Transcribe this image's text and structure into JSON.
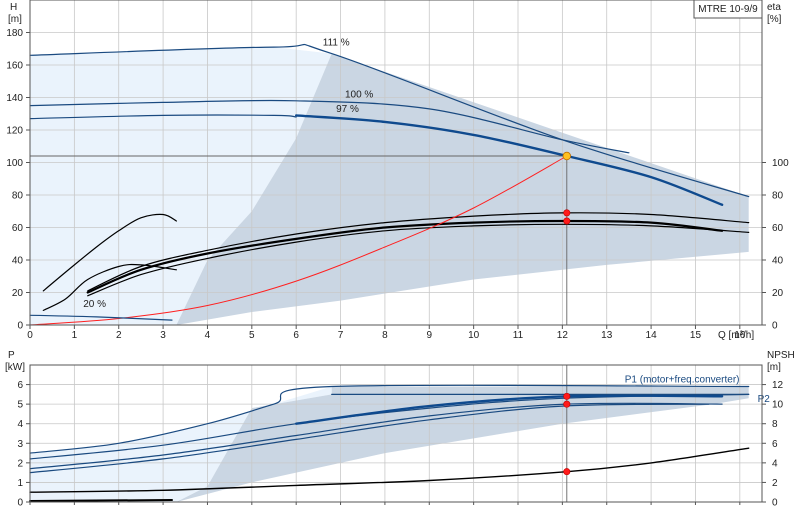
{
  "model_box": "MTRE 10-9/9",
  "chart_data": [
    {
      "type": "line",
      "panel": "head_efficiency",
      "left_axis_label": "H",
      "left_axis_unit": "[m]",
      "right_axis_label": "eta",
      "right_axis_unit": "[%]",
      "xlabel": "Q [m³/h]",
      "xlim": [
        0,
        16.5
      ],
      "ylim": [
        0,
        200
      ],
      "y2lim": [
        0,
        200
      ],
      "x_ticks": [
        "0",
        "1",
        "2",
        "3",
        "4",
        "5",
        "6",
        "7",
        "8",
        "9",
        "10",
        "11",
        "12",
        "13",
        "14",
        "15",
        "16"
      ],
      "y_ticks": [
        "0",
        "20",
        "40",
        "60",
        "80",
        "100",
        "120",
        "140",
        "160",
        "180"
      ],
      "y2_ticks": [
        "0",
        "20",
        "40",
        "60",
        "80",
        "100"
      ],
      "grid": true,
      "shaded_regions": [
        {
          "name": "light",
          "color": "#eaf3fc",
          "points": [
            [
              0,
              166
            ],
            [
              5.5,
              171
            ],
            [
              6.8,
              167
            ],
            [
              6.0,
              115
            ],
            [
              5.0,
              70
            ],
            [
              4.0,
              40
            ],
            [
              3.3,
              0
            ],
            [
              0,
              0
            ]
          ]
        },
        {
          "name": "dark",
          "color": "#cad6e3",
          "points": [
            [
              6.8,
              167
            ],
            [
              16.2,
              79
            ],
            [
              16.2,
              45
            ],
            [
              13,
              37
            ],
            [
              10,
              28
            ],
            [
              7,
              15
            ],
            [
              5,
              8
            ],
            [
              3.3,
              0
            ],
            [
              4.0,
              40
            ],
            [
              5.0,
              70
            ],
            [
              6.0,
              115
            ]
          ]
        }
      ],
      "series": [
        {
          "name": "111 %",
          "kind": "head",
          "color": "#1a4a80",
          "width": 1.2,
          "points": [
            [
              0,
              166
            ],
            [
              5.5,
              171
            ],
            [
              6.8,
              167
            ],
            [
              12,
              114
            ],
            [
              16.2,
              79
            ]
          ]
        },
        {
          "name": "100 %",
          "kind": "head",
          "color": "#1a4a80",
          "width": 1.2,
          "points": [
            [
              0,
              135
            ],
            [
              3,
              137
            ],
            [
              6,
              138
            ],
            [
              9,
              133
            ],
            [
              12,
              114
            ],
            [
              13.5,
              106
            ]
          ]
        },
        {
          "name": "97 %",
          "kind": "head",
          "color": "#1a4a80",
          "width": 1.2,
          "points": [
            [
              0,
              127
            ],
            [
              3,
              129
            ],
            [
              5.5,
              129
            ],
            [
              6,
              128
            ]
          ]
        },
        {
          "name": "",
          "kind": "head_duty",
          "color": "#0f4a8e",
          "width": 2.4,
          "points": [
            [
              6,
              129
            ],
            [
              8,
              125
            ],
            [
              10,
              117
            ],
            [
              12.1,
              104
            ],
            [
              14,
              91
            ],
            [
              15.6,
              74
            ]
          ]
        },
        {
          "name": "",
          "kind": "efficiency",
          "color": "#000000",
          "width": 1.2,
          "points": [
            [
              1.3,
              21
            ],
            [
              2.5,
              36
            ],
            [
              4,
              46
            ],
            [
              6,
              56
            ],
            [
              8,
              63
            ],
            [
              10,
              67
            ],
            [
              12,
              69
            ],
            [
              14,
              68
            ],
            [
              16.2,
              63
            ]
          ]
        },
        {
          "name": "",
          "kind": "efficiency",
          "color": "#000000",
          "width": 2.2,
          "points": [
            [
              1.3,
              20
            ],
            [
              2.5,
              34
            ],
            [
              4,
              44
            ],
            [
              6,
              53
            ],
            [
              8,
              60
            ],
            [
              10,
              63
            ],
            [
              12,
              64
            ],
            [
              14,
              63
            ],
            [
              15.6,
              58
            ]
          ]
        },
        {
          "name": "",
          "kind": "efficiency",
          "color": "#000000",
          "width": 1.2,
          "points": [
            [
              1.3,
              18
            ],
            [
              2.5,
              31
            ],
            [
              4,
              41
            ],
            [
              6,
              51
            ],
            [
              8,
              58
            ],
            [
              10,
              61
            ],
            [
              12,
              62
            ],
            [
              14,
              61
            ],
            [
              16.2,
              57
            ]
          ]
        },
        {
          "name": "",
          "kind": "efficiency",
          "color": "#000000",
          "width": 1.2,
          "points": [
            [
              0.3,
              21
            ],
            [
              1,
              37
            ],
            [
              1.5,
              48
            ],
            [
              2,
              58
            ],
            [
              2.5,
              66
            ],
            [
              3,
              68
            ],
            [
              3.3,
              64
            ]
          ]
        },
        {
          "name": "",
          "kind": "efficiency",
          "color": "#000000",
          "width": 1.2,
          "points": [
            [
              0.3,
              9
            ],
            [
              0.8,
              16
            ],
            [
              1.3,
              28
            ],
            [
              2,
              36
            ],
            [
              2.5,
              37
            ],
            [
              3.3,
              34
            ]
          ]
        },
        {
          "name": "",
          "kind": "system",
          "color": "#ff2020",
          "width": 1,
          "points": [
            [
              0,
              0
            ],
            [
              2,
              4
            ],
            [
              4,
              12
            ],
            [
              6,
              27
            ],
            [
              8,
              48
            ],
            [
              10,
              72
            ],
            [
              12.1,
              104
            ]
          ]
        },
        {
          "name": "20 %",
          "kind": "head",
          "color": "#1a4a80",
          "width": 1.2,
          "points": [
            [
              0,
              6
            ],
            [
              1.5,
              5
            ],
            [
              3.2,
              3
            ]
          ]
        }
      ],
      "operating_point": {
        "x": 12.1,
        "y": 104
      },
      "duty_markers": [
        {
          "x": 12.1,
          "y": 69
        },
        {
          "x": 12.1,
          "y": 64
        }
      ],
      "label_positions": [
        {
          "text": "111 %",
          "x": 6.6,
          "y": 172
        },
        {
          "text": "100 %",
          "x": 7.1,
          "y": 140
        },
        {
          "text": "97 %",
          "x": 6.9,
          "y": 131
        },
        {
          "text": "20 %",
          "x": 1.2,
          "y": 11
        }
      ]
    },
    {
      "type": "line",
      "panel": "power_npsh",
      "left_axis_label": "P",
      "left_axis_unit": "[kW]",
      "right_axis_label": "NPSH",
      "right_axis_unit": "[m]",
      "xlim": [
        0,
        16.5
      ],
      "ylim": [
        0,
        7
      ],
      "y2lim": [
        0,
        14
      ],
      "y_ticks": [
        "0",
        "1",
        "2",
        "3",
        "4",
        "5",
        "6"
      ],
      "y2_ticks": [
        "0",
        "2",
        "4",
        "6",
        "8",
        "10",
        "12"
      ],
      "grid": true,
      "shaded_regions": [
        {
          "name": "light",
          "color": "#eaf3fc",
          "points": [
            [
              0,
              2.5
            ],
            [
              2,
              3.0
            ],
            [
              4,
              4.0
            ],
            [
              5.5,
              5.0
            ],
            [
              6.8,
              5.9
            ],
            [
              6.8,
              5.5
            ],
            [
              5,
              4.8
            ],
            [
              4,
              0.8
            ],
            [
              3.3,
              0
            ],
            [
              0,
              0
            ]
          ]
        },
        {
          "name": "dark",
          "color": "#cad6e3",
          "points": [
            [
              6.8,
              5.9
            ],
            [
              16.2,
              5.9
            ],
            [
              16.2,
              5.3
            ],
            [
              15.4,
              5.0
            ],
            [
              12,
              4.0
            ],
            [
              8,
              2.5
            ],
            [
              5,
              1.0
            ],
            [
              3.3,
              0
            ],
            [
              4,
              0.8
            ],
            [
              5,
              4.8
            ],
            [
              6.8,
              5.5
            ]
          ]
        }
      ],
      "series": [
        {
          "name": "",
          "kind": "power",
          "color": "#1a4a80",
          "width": 1.2,
          "points": [
            [
              0,
              2.5
            ],
            [
              2,
              3.0
            ],
            [
              4,
              4.0
            ],
            [
              5.5,
              5.0
            ],
            [
              6.8,
              5.9
            ],
            [
              16.2,
              5.9
            ]
          ]
        },
        {
          "name": "",
          "kind": "power",
          "color": "#1a4a80",
          "width": 1.2,
          "points": [
            [
              0,
              2.2
            ],
            [
              3,
              2.9
            ],
            [
              6,
              4.0
            ],
            [
              9,
              4.8
            ],
            [
              12,
              5.3
            ],
            [
              16.2,
              5.5
            ]
          ]
        },
        {
          "name": "P1 (motor+freq.converter)",
          "kind": "power_duty",
          "color": "#0f4a8e",
          "width": 2.4,
          "points": [
            [
              6,
              4.0
            ],
            [
              9,
              4.9
            ],
            [
              12.1,
              5.4
            ],
            [
              15.6,
              5.4
            ]
          ]
        },
        {
          "name": "",
          "kind": "power",
          "color": "#1a4a80",
          "width": 1.2,
          "points": [
            [
              0,
              1.7
            ],
            [
              3,
              2.4
            ],
            [
              6,
              3.4
            ],
            [
              9,
              4.4
            ],
            [
              12.1,
              5.0
            ],
            [
              15.6,
              5.0
            ]
          ]
        },
        {
          "name": "",
          "kind": "power",
          "color": "#1a4a80",
          "width": 1.2,
          "points": [
            [
              0,
              1.5
            ],
            [
              3,
              2.2
            ],
            [
              6,
              3.2
            ],
            [
              9,
              4.2
            ],
            [
              12,
              4.9
            ],
            [
              15.3,
              5.0
            ]
          ]
        },
        {
          "name": "P2",
          "kind": "power",
          "color": "#1a4a80",
          "width": 1.2,
          "points": [
            [
              6.8,
              5.5
            ],
            [
              16.2,
              5.5
            ]
          ]
        },
        {
          "name": "",
          "kind": "npsh",
          "color": "#000000",
          "width": 1.4,
          "points": [
            [
              0,
              0.5
            ],
            [
              3,
              0.6
            ],
            [
              6,
              0.85
            ],
            [
              9,
              1.1
            ],
            [
              12.1,
              1.55
            ],
            [
              14,
              2.0
            ],
            [
              16.2,
              2.75
            ]
          ]
        },
        {
          "name": "",
          "kind": "power_low",
          "color": "#000000",
          "width": 2,
          "points": [
            [
              0,
              0.05
            ],
            [
              3.2,
              0.1
            ]
          ]
        }
      ],
      "duty_markers": [
        {
          "x": 12.1,
          "y": 5.4
        },
        {
          "x": 12.1,
          "y": 5.0
        },
        {
          "x": 12.1,
          "y": 1.55
        }
      ],
      "label_positions": [
        {
          "text": "P1 (motor+freq.converter)",
          "x": 14.7,
          "y": 6.1
        },
        {
          "text": "P2",
          "x": 16.4,
          "y": 5.1
        }
      ]
    }
  ]
}
